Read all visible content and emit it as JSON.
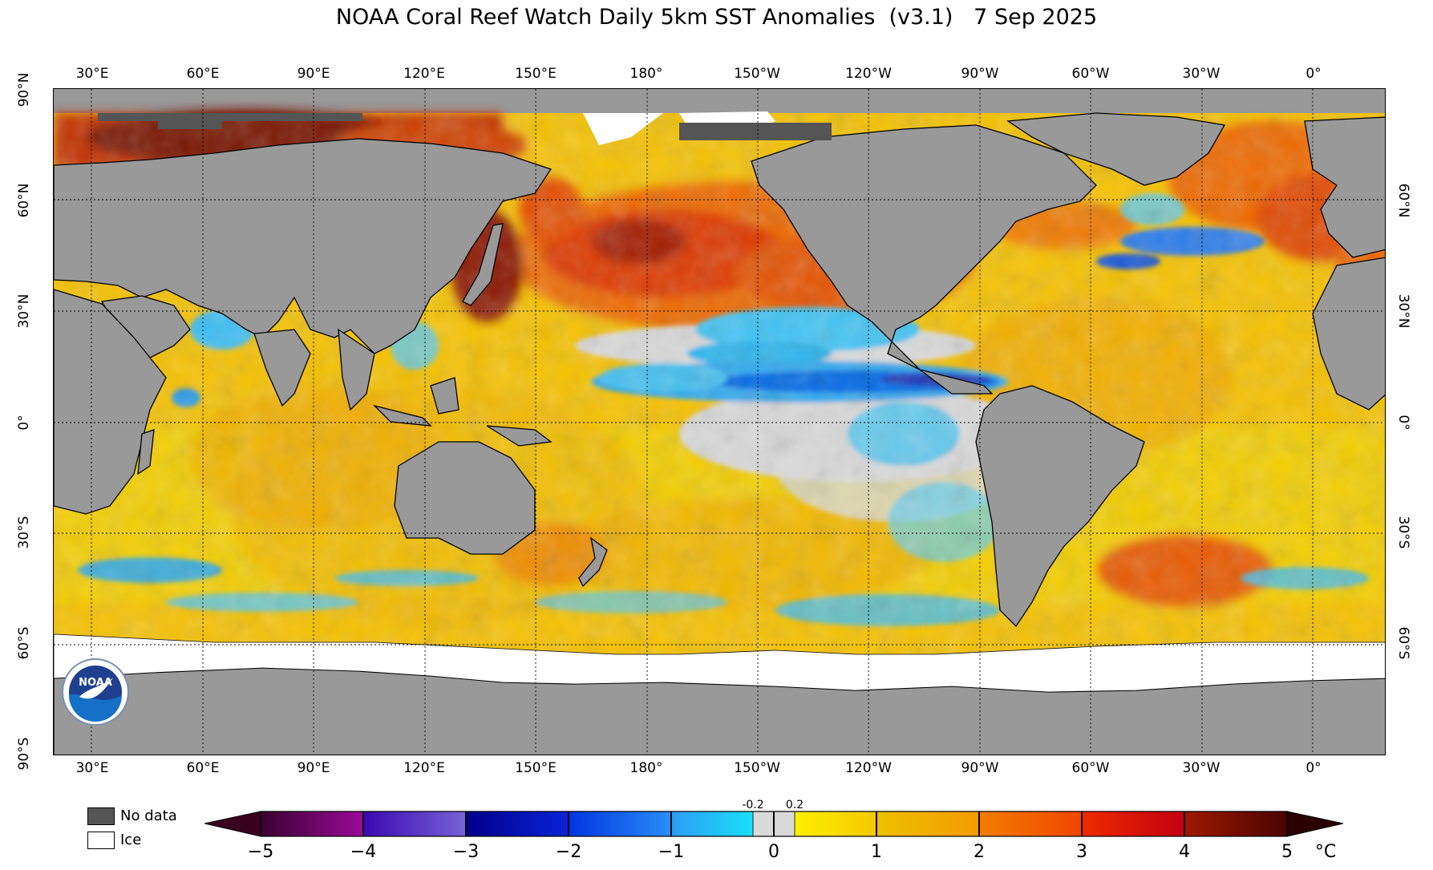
{
  "title": "NOAA Coral Reef Watch Daily 5km SST Anomalies  (v3.1)   7 Sep 2025",
  "lon_labels": [
    "30°E",
    "60°E",
    "90°E",
    "120°E",
    "150°E",
    "180°",
    "150°W",
    "120°W",
    "90°W",
    "60°W",
    "30°W",
    "0°"
  ],
  "lat_labels_left": [
    "90°N",
    "60°N",
    "30°N",
    "0°",
    "30°S",
    "60°S",
    "90°S"
  ],
  "lat_labels_right": [
    "60°N",
    "30°N",
    "0°",
    "30°S",
    "60°S"
  ],
  "legend": {
    "no_data": "No data",
    "ice": "Ice"
  },
  "colorbar": {
    "ticks": [
      "−5",
      "−4",
      "−3",
      "−2",
      "−1",
      "0",
      "1",
      "2",
      "3",
      "4",
      "5"
    ],
    "small_ticks": [
      "-0.2",
      "0.2"
    ],
    "unit": "°C"
  },
  "colors": {
    "land": "#999999",
    "no_data": "#555555",
    "ice": "#ffffff",
    "neutral": "#d9d9d9"
  },
  "logo_text": "NOAA"
}
